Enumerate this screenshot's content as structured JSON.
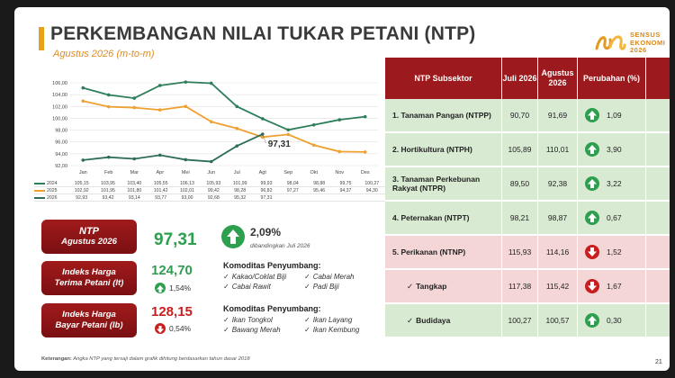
{
  "header": {
    "title": "PERKEMBANGAN NILAI TUKAR PETANI (NTP)",
    "subtitle": "Agustus 2026 (m-to-m)",
    "logo_line1": "SENSUS",
    "logo_line2": "EKONOMI",
    "logo_line3": "2026"
  },
  "colors": {
    "green": "#2e9e4f",
    "red": "#9c1a1d",
    "orange": "#f0a030",
    "teal": "#2e7d5b"
  },
  "chart_data": {
    "type": "line",
    "categories": [
      "Jan",
      "Feb",
      "Mar",
      "Apr",
      "Mei",
      "Jun",
      "Jul",
      "Agt",
      "Sep",
      "Okt",
      "Nov",
      "Des"
    ],
    "ylim": [
      92,
      106
    ],
    "yticks": [
      "92,00",
      "94,00",
      "96,00",
      "98,00",
      "100,00",
      "102,00",
      "104,00",
      "106,00"
    ],
    "annotation": "97,31",
    "series": [
      {
        "name": "2024",
        "color": "#2e7d5b",
        "values": [
          105.15,
          103.95,
          103.4,
          105.55,
          106.13,
          105.93,
          101.99,
          99.93,
          98.04,
          98.88,
          99.75,
          100.27
        ],
        "labels": [
          "105,15",
          "103,95",
          "103,40",
          "105,55",
          "106,13",
          "105,93",
          "101,99",
          "99,93",
          "98,04",
          "98,88",
          "99,75",
          "100,27"
        ]
      },
      {
        "name": "2025",
        "color": "#f0a030",
        "values": [
          102.92,
          101.95,
          101.8,
          101.42,
          102.01,
          99.42,
          98.28,
          96.82,
          97.27,
          95.46,
          94.37,
          94.3
        ],
        "labels": [
          "102,92",
          "101,95",
          "101,80",
          "101,42",
          "102,01",
          "99,42",
          "98,28",
          "96,82",
          "97,27",
          "95,46",
          "94,37",
          "94,30"
        ]
      },
      {
        "name": "2026",
        "color": "#2e6d5b",
        "values": [
          92.93,
          93.42,
          93.14,
          93.77,
          93.0,
          92.68,
          95.32,
          97.31,
          null,
          null,
          null,
          null
        ],
        "labels": [
          "92,93",
          "93,42",
          "93,14",
          "93,77",
          "93,00",
          "92,68",
          "95,32",
          "97,31",
          "",
          "",
          "",
          ""
        ]
      }
    ]
  },
  "summary": {
    "ntp_label_1": "NTP",
    "ntp_label_2": "Agustus 2026",
    "ntp_value": "97,31",
    "ntp_change": "2,09%",
    "ntp_compare": "dibandingkan Juli 2026",
    "it_label_1": "Indeks Harga",
    "it_label_2": "Terima Petani (It)",
    "it_value": "124,70",
    "it_change": "1,54%",
    "ib_label_1": "Indeks Harga",
    "ib_label_2": "Bayar Petani (Ib)",
    "ib_value": "128,15",
    "ib_change": "0,54%",
    "it_komoditas_title": "Komoditas Penyumbang:",
    "it_komoditas": [
      "Kakao/Coklat Biji",
      "Cabai Merah",
      "Cabai Rawit",
      "Padi Biji"
    ],
    "ib_komoditas_title": "Komoditas Penyumbang:",
    "ib_komoditas": [
      "Ikan Tongkol",
      "Ikan Layang",
      "Bawang Merah",
      "Ikan Kembung"
    ]
  },
  "table": {
    "headers": [
      "NTP Subsektor",
      "Juli 2026",
      "Agustus 2026",
      "Perubahan (%)"
    ],
    "rows": [
      {
        "name": "1. Tanaman Pangan (NTPP)",
        "jul": "90,70",
        "agt": "91,69",
        "chg": "1,09",
        "dir": "up",
        "tone": "green"
      },
      {
        "name": "2. Hortikultura (NTPH)",
        "jul": "105,89",
        "agt": "110,01",
        "chg": "3,90",
        "dir": "up",
        "tone": "green"
      },
      {
        "name": "3. Tanaman Perkebunan Rakyat (NTPR)",
        "jul": "89,50",
        "agt": "92,38",
        "chg": "3,22",
        "dir": "up",
        "tone": "green"
      },
      {
        "name": "4. Peternakan (NTPT)",
        "jul": "98,21",
        "agt": "98,87",
        "chg": "0,67",
        "dir": "up",
        "tone": "green"
      },
      {
        "name": "5. Perikanan (NTNP)",
        "jul": "115,93",
        "agt": "114,16",
        "chg": "1,52",
        "dir": "down",
        "tone": "pink"
      },
      {
        "name": "Tangkap",
        "jul": "117,38",
        "agt": "115,42",
        "chg": "1,67",
        "dir": "down",
        "tone": "pink",
        "sub": true
      },
      {
        "name": "Budidaya",
        "jul": "100,27",
        "agt": "100,57",
        "chg": "0,30",
        "dir": "up",
        "tone": "green",
        "sub": true
      }
    ]
  },
  "footer": {
    "note_label": "Keterangan:",
    "note_text": "Angka NTP yang tersaji dalam grafik dihitung berdasarkan tahun dasar 2018",
    "page": "21"
  }
}
